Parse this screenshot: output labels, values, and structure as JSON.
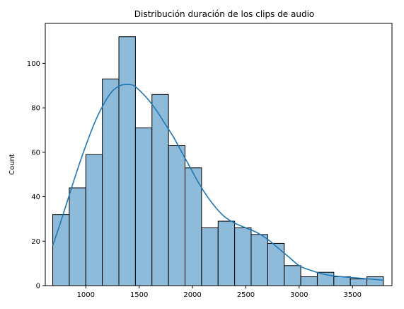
{
  "chart_data": {
    "type": "bar",
    "title": "Distribución duración de los clips de audio",
    "xlabel": "",
    "ylabel": "Count",
    "xlim": [
      620,
      3870
    ],
    "ylim": [
      0,
      118
    ],
    "x_ticks": [
      1000,
      1500,
      2000,
      2500,
      3000,
      3500
    ],
    "y_ticks": [
      0,
      20,
      40,
      60,
      80,
      100
    ],
    "grid": false,
    "colors": {
      "bar_fill": "#8fbbda",
      "bar_edge": "#000000",
      "kde_line": "#1f77b4"
    },
    "bins": [
      {
        "x0": 690,
        "x1": 845,
        "count": 32
      },
      {
        "x0": 845,
        "x1": 1000,
        "count": 44
      },
      {
        "x0": 1000,
        "x1": 1155,
        "count": 59
      },
      {
        "x0": 1155,
        "x1": 1310,
        "count": 93
      },
      {
        "x0": 1310,
        "x1": 1465,
        "count": 112
      },
      {
        "x0": 1465,
        "x1": 1620,
        "count": 71
      },
      {
        "x0": 1620,
        "x1": 1775,
        "count": 86
      },
      {
        "x0": 1775,
        "x1": 1930,
        "count": 63
      },
      {
        "x0": 1930,
        "x1": 2085,
        "count": 53
      },
      {
        "x0": 2085,
        "x1": 2240,
        "count": 26
      },
      {
        "x0": 2240,
        "x1": 2395,
        "count": 29
      },
      {
        "x0": 2395,
        "x1": 2550,
        "count": 26
      },
      {
        "x0": 2550,
        "x1": 2705,
        "count": 23
      },
      {
        "x0": 2705,
        "x1": 2860,
        "count": 19
      },
      {
        "x0": 2860,
        "x1": 3015,
        "count": 9
      },
      {
        "x0": 3015,
        "x1": 3170,
        "count": 4
      },
      {
        "x0": 3170,
        "x1": 3325,
        "count": 6
      },
      {
        "x0": 3325,
        "x1": 3480,
        "count": 4
      },
      {
        "x0": 3480,
        "x1": 3635,
        "count": 3
      },
      {
        "x0": 3635,
        "x1": 3790,
        "count": 4
      }
    ],
    "kde": {
      "x": [
        690,
        760,
        840,
        920,
        1000,
        1080,
        1160,
        1240,
        1320,
        1400,
        1450,
        1500,
        1580,
        1660,
        1740,
        1820,
        1900,
        1980,
        2060,
        2140,
        2220,
        2300,
        2400,
        2500,
        2600,
        2700,
        2800,
        2900,
        3000,
        3100,
        3200,
        3300,
        3400,
        3500,
        3600,
        3700,
        3790
      ],
      "y": [
        18,
        28,
        40,
        52,
        63,
        73,
        81,
        87,
        90,
        90.5,
        90,
        88,
        84,
        79,
        73,
        67,
        60,
        53,
        46,
        40,
        35,
        31,
        28,
        26,
        24,
        21,
        17,
        13,
        9,
        7,
        5.5,
        4.5,
        4,
        3.6,
        3.2,
        2.8,
        2.4
      ]
    }
  }
}
